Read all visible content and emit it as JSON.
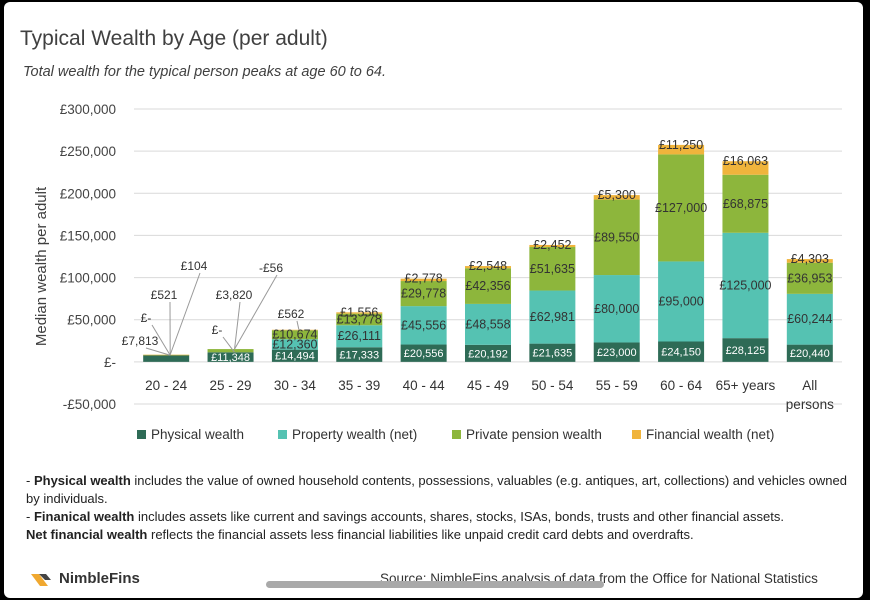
{
  "chart_data": {
    "type": "bar",
    "stacked": true,
    "title": "Typical Wealth by Age (per adult)",
    "subtitle": "Total wealth for the typical person peaks at age 60 to 64.",
    "ylabel": "Median wealth per adult",
    "ylim": [
      -50000,
      300000
    ],
    "yticks": [
      -50000,
      0,
      50000,
      100000,
      150000,
      200000,
      250000,
      300000
    ],
    "ytick_labels": [
      "-£50,000",
      "£-",
      "£50,000",
      "£100,000",
      "£150,000",
      "£200,000",
      "£250,000",
      "£300,000"
    ],
    "grid": true,
    "legend_position": "bottom",
    "categories": [
      "20 - 24",
      "25 - 29",
      "30 - 34",
      "35 - 39",
      "40 - 44",
      "45 - 49",
      "50 - 54",
      "55 - 59",
      "60 - 64",
      "65+ years",
      "All persons"
    ],
    "series": [
      {
        "name": "Physical wealth",
        "color": "#2e6b56",
        "values": [
          7813,
          11348,
          14494,
          17333,
          20556,
          20192,
          21635,
          23000,
          24150,
          28125,
          20440
        ],
        "labels": [
          "£7,813",
          "£11,348",
          "£14,494",
          "£17,333",
          "£20,556",
          "£20,192",
          "£21,635",
          "£23,000",
          "£24,150",
          "£28,125",
          "£20,440"
        ]
      },
      {
        "name": "Property wealth (net)",
        "color": "#55c2b2",
        "values": [
          0,
          0,
          12360,
          26111,
          45556,
          48558,
          62981,
          80000,
          95000,
          125000,
          60244
        ],
        "labels": [
          "£-",
          "£-",
          "£12,360",
          "£26,111",
          "£45,556",
          "£48,558",
          "£62,981",
          "£80,000",
          "£95,000",
          "£125,000",
          "£60,244"
        ]
      },
      {
        "name": "Private pension wealth",
        "color": "#8db63c",
        "values": [
          521,
          3820,
          10674,
          13778,
          29778,
          42356,
          51635,
          89550,
          127000,
          68875,
          36953
        ],
        "labels": [
          "£521",
          "£3,820",
          "£10,674",
          "£13,778",
          "£29,778",
          "£42,356",
          "£51,635",
          "£89,550",
          "£127,000",
          "£68,875",
          "£36,953"
        ]
      },
      {
        "name": "Financial wealth (net)",
        "color": "#f0b43c",
        "values": [
          104,
          -56,
          562,
          1556,
          2778,
          2548,
          2452,
          5300,
          11250,
          16063,
          4303
        ],
        "labels": [
          "£104",
          "-£56",
          "£562",
          "£1,556",
          "£2,778",
          "£2,548",
          "£2,452",
          "£5,300",
          "£11,250",
          "£16,063",
          "£4,303"
        ]
      }
    ]
  },
  "notes": {
    "line1_bold": "Physical wealth",
    "line1_rest": " includes the value of owned household contents, possessions, valuables (e.g. antiques, art, collections) and vehicles owned by individuals.",
    "line2_bold": "Finanical wealth",
    "line2_rest": " includes assets like current and savings accounts, shares, stocks, ISAs, bonds, trusts and other financial assets.",
    "line3_bold": "Net financial wealth",
    "line3_rest": " reflects the financial assets less financial liabilities like unpaid credit card debts and overdrafts.",
    "dash": "- "
  },
  "footer": {
    "brand": "NimbleFins",
    "source": "Source: NimbleFins analysis of data from the Office for National Statistics"
  },
  "colors": {
    "gridline": "#d9d9d9",
    "text": "#404040"
  }
}
